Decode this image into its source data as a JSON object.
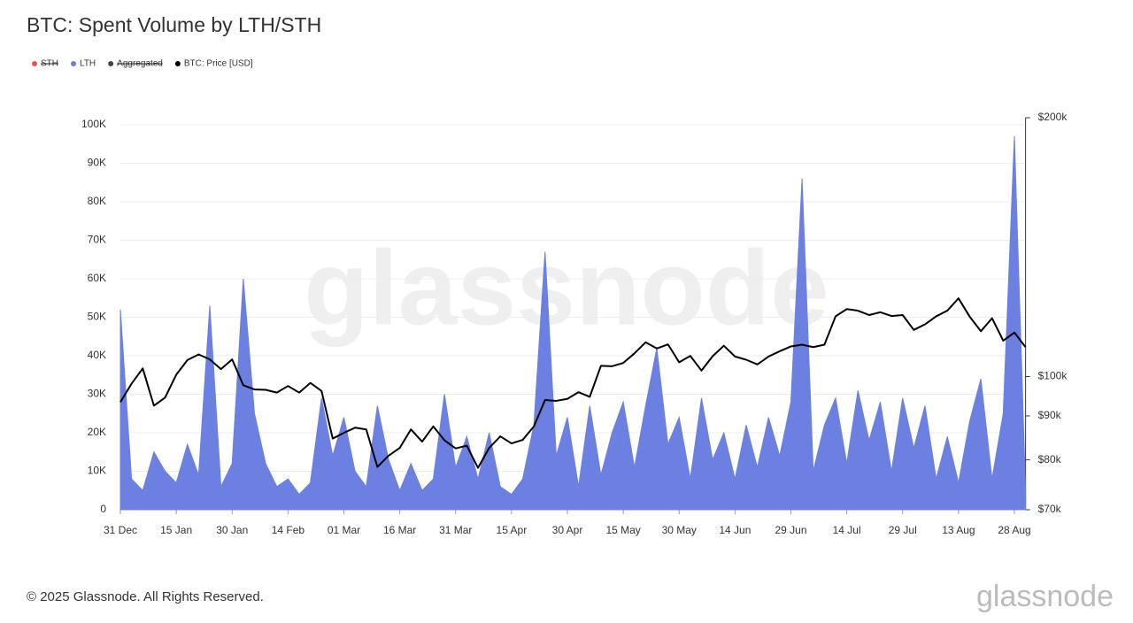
{
  "chart_data": {
    "type": "area-line",
    "title": "BTC: Spent Volume by LTH/STH",
    "x": [
      "31 Dec",
      "03 Jan",
      "06 Jan",
      "09 Jan",
      "12 Jan",
      "15 Jan",
      "18 Jan",
      "21 Jan",
      "24 Jan",
      "27 Jan",
      "30 Jan",
      "02 Feb",
      "05 Feb",
      "08 Feb",
      "11 Feb",
      "14 Feb",
      "17 Feb",
      "20 Feb",
      "23 Feb",
      "26 Feb",
      "01 Mar",
      "04 Mar",
      "07 Mar",
      "10 Mar",
      "13 Mar",
      "16 Mar",
      "19 Mar",
      "22 Mar",
      "25 Mar",
      "28 Mar",
      "31 Mar",
      "03 Apr",
      "06 Apr",
      "09 Apr",
      "12 Apr",
      "15 Apr",
      "18 Apr",
      "21 Apr",
      "24 Apr",
      "27 Apr",
      "30 Apr",
      "03 May",
      "06 May",
      "09 May",
      "12 May",
      "15 May",
      "18 May",
      "21 May",
      "24 May",
      "27 May",
      "30 May",
      "02 Jun",
      "05 Jun",
      "08 Jun",
      "11 Jun",
      "14 Jun",
      "17 Jun",
      "20 Jun",
      "23 Jun",
      "26 Jun",
      "29 Jun",
      "02 Jul",
      "05 Jul",
      "08 Jul",
      "11 Jul",
      "14 Jul",
      "17 Jul",
      "20 Jul",
      "23 Jul",
      "26 Jul",
      "29 Jul",
      "01 Aug",
      "04 Aug",
      "07 Aug",
      "10 Aug",
      "13 Aug",
      "16 Aug",
      "19 Aug",
      "22 Aug",
      "25 Aug",
      "28 Aug",
      "31 Aug"
    ],
    "xticks": [
      "31 Dec",
      "15 Jan",
      "30 Jan",
      "14 Feb",
      "01 Mar",
      "16 Mar",
      "31 Mar",
      "15 Apr",
      "30 Apr",
      "15 May",
      "30 May",
      "14 Jun",
      "29 Jun",
      "14 Jul",
      "29 Jul",
      "13 Aug",
      "28 Aug"
    ],
    "series": [
      {
        "name": "STH",
        "color": "#e0574f",
        "hidden": true
      },
      {
        "name": "LTH",
        "color": "#6b80e0",
        "values": [
          52000,
          8000,
          5000,
          15000,
          10000,
          7000,
          17000,
          9000,
          53000,
          6000,
          12000,
          60000,
          25000,
          12000,
          6000,
          8000,
          4000,
          7000,
          29000,
          14000,
          24000,
          10000,
          6000,
          27000,
          13000,
          5000,
          12000,
          5000,
          8000,
          30000,
          11000,
          19000,
          8000,
          20000,
          6000,
          4000,
          8000,
          22000,
          67000,
          14000,
          24000,
          6000,
          27000,
          9000,
          20000,
          28000,
          11000,
          27000,
          42000,
          17000,
          24000,
          8000,
          29000,
          13000,
          20000,
          8000,
          22000,
          11000,
          24000,
          14000,
          28000,
          86000,
          10000,
          22000,
          29000,
          12000,
          31000,
          18000,
          28000,
          10000,
          29000,
          16000,
          27000,
          8000,
          19000,
          7000,
          23000,
          34000,
          8000,
          25000,
          97000,
          5000
        ]
      },
      {
        "name": "Aggregated",
        "color": "#444444",
        "hidden": true
      },
      {
        "name": "BTC: Price [USD]",
        "color": "#000000",
        "axis": "y2",
        "values": [
          93400,
          98100,
          102200,
          92500,
          94500,
          100500,
          104500,
          106100,
          104700,
          102000,
          104700,
          97700,
          96600,
          96500,
          95800,
          97500,
          95800,
          98300,
          96200,
          84700,
          86000,
          87200,
          86800,
          78500,
          80900,
          82600,
          86800,
          84000,
          87500,
          84300,
          82500,
          83100,
          78300,
          82600,
          85200,
          83600,
          84400,
          87500,
          93900,
          93700,
          94200,
          95900,
          94700,
          102900,
          102800,
          103700,
          106400,
          109600,
          107800,
          109000,
          103900,
          105700,
          101600,
          105600,
          108600,
          105500,
          104600,
          103300,
          105500,
          107000,
          108400,
          108900,
          108200,
          108900,
          117500,
          119800,
          119300,
          117900,
          118800,
          117600,
          117900,
          113300,
          115000,
          117500,
          119300,
          123300,
          117400,
          112900,
          116900,
          110100,
          112500,
          108200
        ]
      }
    ],
    "ylim": [
      0,
      100000
    ],
    "yticks": [
      0,
      {
        "value": 10000,
        "label": "10K"
      },
      {
        "value": 20000,
        "label": "20K"
      },
      {
        "value": 30000,
        "label": "30K"
      },
      {
        "value": 40000,
        "label": "40K"
      },
      {
        "value": 50000,
        "label": "50K"
      },
      {
        "value": 60000,
        "label": "60K"
      },
      {
        "value": 70000,
        "label": "70K"
      },
      {
        "value": 80000,
        "label": "80K"
      },
      {
        "value": 90000,
        "label": "90K"
      },
      {
        "value": 100000,
        "label": "100K"
      }
    ],
    "y2lim": [
      70000,
      200000
    ],
    "y2scale": "log",
    "y2ticks": [
      {
        "value": 70000,
        "label": "$70k"
      },
      {
        "value": 80000,
        "label": "$80k"
      },
      {
        "value": 90000,
        "label": "$90k"
      },
      {
        "value": 100000,
        "label": "$100k"
      },
      {
        "value": 200000,
        "label": "$200k"
      }
    ],
    "grid": true,
    "watermark": "glassnode",
    "footer": "© 2025 Glassnode. All Rights Reserved.",
    "logo": "glassnode"
  }
}
